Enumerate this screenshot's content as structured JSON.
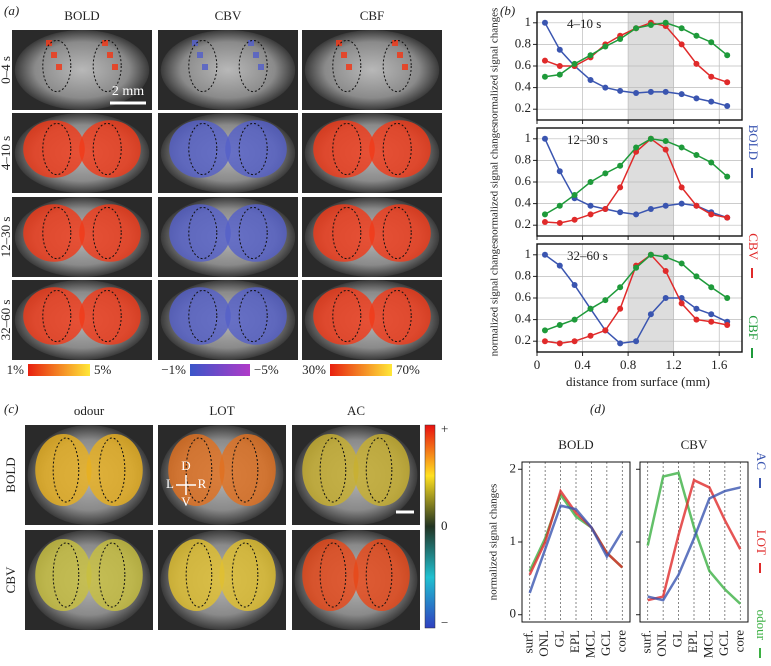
{
  "panels": {
    "a": {
      "label": "(a)",
      "columns": [
        "BOLD",
        "CBV",
        "CBF"
      ],
      "rows": [
        "0–4 s",
        "4–10 s",
        "12–30 s",
        "32–60 s"
      ],
      "scale_bar": "2 mm",
      "colorbars": [
        [
          "1%",
          "5%"
        ],
        [
          "−1%",
          "−5%"
        ],
        [
          "30%",
          "70%"
        ]
      ]
    },
    "b": {
      "label": "(b)",
      "xlabel": "distance from surface (mm)"
    },
    "c": {
      "label": "(c)",
      "columns": [
        "odour",
        "LOT",
        "AC"
      ],
      "rows": [
        "BOLD",
        "CBV"
      ],
      "orientation": [
        "D",
        "L",
        "R",
        "V"
      ],
      "colorbar": [
        "+",
        "0",
        "−"
      ]
    },
    "d": {
      "label": "(d)"
    }
  },
  "chart_data": [
    {
      "type": "line",
      "title": "4–10 s",
      "ylabel": "normalized signal changes",
      "x": [
        0.07,
        0.2,
        0.33,
        0.47,
        0.6,
        0.73,
        0.87,
        1.0,
        1.13,
        1.27,
        1.4,
        1.53,
        1.67
      ],
      "xlim": [
        0,
        1.8
      ],
      "xticks": [
        0,
        0.4,
        0.8,
        1.2,
        1.6
      ],
      "ylim": [
        0.1,
        1.1
      ],
      "yticks": [
        0.2,
        0.4,
        0.6,
        0.8,
        1.0
      ],
      "grid": true,
      "shade": [
        0.8,
        1.2
      ],
      "series": [
        {
          "color": "#3a55b0",
          "values": [
            1.0,
            0.75,
            0.6,
            0.47,
            0.4,
            0.37,
            0.35,
            0.36,
            0.36,
            0.34,
            0.3,
            0.27,
            0.23
          ]
        },
        {
          "color": "#e02a2a",
          "values": [
            0.65,
            0.6,
            0.6,
            0.68,
            0.8,
            0.88,
            0.95,
            1.0,
            0.97,
            0.8,
            0.62,
            0.5,
            0.45
          ]
        },
        {
          "color": "#1e9a3a",
          "values": [
            0.5,
            0.52,
            0.62,
            0.7,
            0.78,
            0.85,
            0.95,
            0.98,
            1.0,
            0.95,
            0.88,
            0.82,
            0.7
          ]
        }
      ]
    },
    {
      "type": "line",
      "title": "12–30 s",
      "ylabel": "normalized signal changes",
      "x": [
        0.07,
        0.2,
        0.33,
        0.47,
        0.6,
        0.73,
        0.87,
        1.0,
        1.13,
        1.27,
        1.4,
        1.53,
        1.67
      ],
      "xlim": [
        0,
        1.8
      ],
      "xticks": [
        0,
        0.4,
        0.8,
        1.2,
        1.6
      ],
      "ylim": [
        0.1,
        1.1
      ],
      "yticks": [
        0.2,
        0.4,
        0.6,
        0.8,
        1.0
      ],
      "grid": true,
      "shade": [
        0.8,
        1.2
      ],
      "series": [
        {
          "name": "BOLD",
          "color": "#3a55b0",
          "values": [
            1.0,
            0.7,
            0.45,
            0.38,
            0.35,
            0.32,
            0.3,
            0.35,
            0.38,
            0.4,
            0.38,
            0.32,
            0.27
          ]
        },
        {
          "name": "CBV",
          "color": "#e02a2a",
          "values": [
            0.23,
            0.22,
            0.25,
            0.3,
            0.35,
            0.55,
            0.88,
            1.0,
            0.9,
            0.55,
            0.38,
            0.3,
            0.27
          ]
        },
        {
          "name": "CBF",
          "color": "#1e9a3a",
          "values": [
            0.3,
            0.38,
            0.48,
            0.6,
            0.68,
            0.75,
            0.92,
            1.0,
            0.98,
            0.92,
            0.85,
            0.78,
            0.65
          ]
        }
      ]
    },
    {
      "type": "line",
      "title": "32–60 s",
      "ylabel": "normalized signal changes",
      "x": [
        0.07,
        0.2,
        0.33,
        0.47,
        0.6,
        0.73,
        0.87,
        1.0,
        1.13,
        1.27,
        1.4,
        1.53,
        1.67
      ],
      "xlim": [
        0,
        1.8
      ],
      "xticks": [
        0,
        0.4,
        0.8,
        1.2,
        1.6
      ],
      "ylim": [
        0.1,
        1.1
      ],
      "yticks": [
        0.2,
        0.4,
        0.6,
        0.8,
        1.0
      ],
      "grid": true,
      "shade": [
        0.8,
        1.2
      ],
      "series": [
        {
          "color": "#3a55b0",
          "values": [
            1.0,
            0.9,
            0.72,
            0.5,
            0.3,
            0.18,
            0.2,
            0.45,
            0.6,
            0.6,
            0.5,
            0.45,
            0.38
          ]
        },
        {
          "color": "#e02a2a",
          "values": [
            0.2,
            0.18,
            0.2,
            0.25,
            0.3,
            0.5,
            0.9,
            1.0,
            0.85,
            0.55,
            0.4,
            0.38,
            0.35
          ]
        },
        {
          "color": "#1e9a3a",
          "values": [
            0.3,
            0.35,
            0.4,
            0.5,
            0.58,
            0.7,
            0.88,
            1.0,
            0.98,
            0.92,
            0.8,
            0.7,
            0.6
          ]
        }
      ]
    },
    {
      "type": "line",
      "title": "BOLD",
      "ylabel": "normalized signal changes",
      "categories": [
        "surf.",
        "ONL",
        "GL",
        "EPL",
        "MCL",
        "GCL",
        "core"
      ],
      "ylim": [
        -0.1,
        2.1
      ],
      "yticks": [
        0,
        1,
        2
      ],
      "grid": true,
      "series": [
        {
          "color": "#3cb043",
          "values": [
            0.6,
            1.05,
            1.65,
            1.35,
            1.2,
            0.85,
            0.65
          ]
        },
        {
          "color": "#e02a2a",
          "values": [
            0.55,
            1.0,
            1.7,
            1.4,
            1.2,
            0.85,
            0.65
          ]
        },
        {
          "color": "#3a55b0",
          "values": [
            0.3,
            0.9,
            1.5,
            1.45,
            1.2,
            0.8,
            1.15
          ]
        }
      ]
    },
    {
      "type": "line",
      "title": "CBV",
      "categories": [
        "surf.",
        "ONL",
        "GL",
        "EPL",
        "MCL",
        "GCL",
        "core"
      ],
      "ylim": [
        -0.1,
        2.1
      ],
      "yticks": [
        0,
        1,
        2
      ],
      "grid": true,
      "series": [
        {
          "name": "odour",
          "color": "#3cb043",
          "values": [
            0.95,
            1.9,
            1.95,
            1.2,
            0.6,
            0.35,
            0.15
          ]
        },
        {
          "name": "LOT",
          "color": "#e02a2a",
          "values": [
            0.2,
            0.25,
            1.1,
            1.85,
            1.75,
            1.3,
            0.9
          ]
        },
        {
          "name": "AC",
          "color": "#3a55b0",
          "values": [
            0.25,
            0.2,
            0.55,
            1.05,
            1.6,
            1.7,
            1.75
          ]
        }
      ]
    }
  ]
}
